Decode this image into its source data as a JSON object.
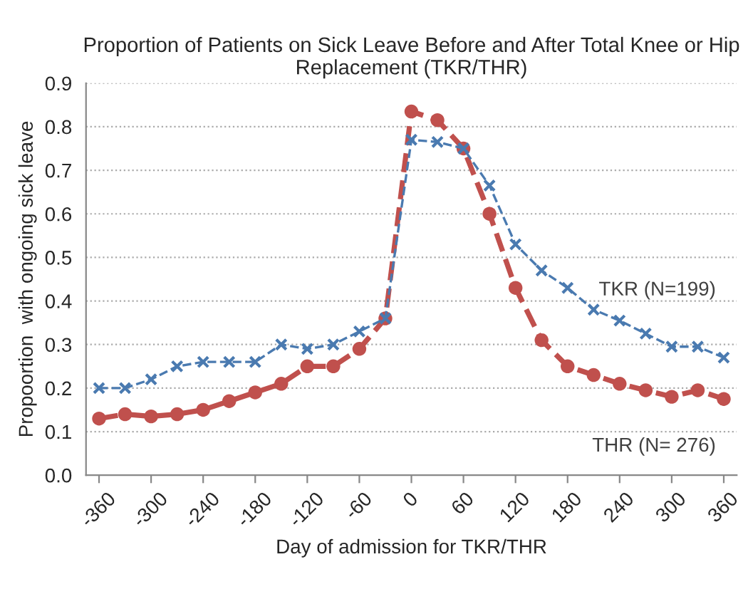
{
  "chart_data": {
    "type": "line",
    "title": "Proportion of Patients on Sick Leave Before and After Total Knee or Hip Replacement (TKR/THR)",
    "xlabel": "Day of admission for TKR/THR",
    "ylabel": "Propoortion  with ongoing sick leave",
    "x": [
      -360,
      -330,
      -300,
      -270,
      -240,
      -210,
      -180,
      -150,
      -120,
      -90,
      -60,
      -30,
      0,
      30,
      60,
      90,
      120,
      150,
      180,
      210,
      240,
      270,
      300,
      330,
      360
    ],
    "series": [
      {
        "name": "TKR (N=199)",
        "color": "#4a7ab0",
        "marker": "cross",
        "line_style": "dashed",
        "values": [
          0.2,
          0.2,
          0.22,
          0.25,
          0.26,
          0.26,
          0.26,
          0.3,
          0.29,
          0.3,
          0.33,
          0.36,
          0.77,
          0.765,
          0.75,
          0.665,
          0.53,
          0.47,
          0.43,
          0.38,
          0.355,
          0.325,
          0.295,
          0.295,
          0.27
        ]
      },
      {
        "name": "THR (N= 276)",
        "color": "#c0504d",
        "marker": "circle",
        "line_style": "dashed",
        "values": [
          0.13,
          0.14,
          0.135,
          0.14,
          0.15,
          0.17,
          0.19,
          0.21,
          0.25,
          0.25,
          0.29,
          0.36,
          0.835,
          0.815,
          0.75,
          0.6,
          0.43,
          0.31,
          0.25,
          0.23,
          0.21,
          0.195,
          0.18,
          0.195,
          0.175
        ]
      }
    ],
    "xlim": [
      -375,
      375
    ],
    "xticks": [
      -360,
      -300,
      -240,
      -180,
      -120,
      -60,
      0,
      60,
      120,
      180,
      240,
      300,
      360
    ],
    "ylim": [
      0,
      0.9
    ],
    "yticks": [
      {
        "value": 0,
        "label": "0.0"
      },
      0.1,
      0.2,
      0.3,
      0.4,
      0.5,
      0.6,
      0.7,
      0.8,
      0.9
    ],
    "grid": "y",
    "legend": false
  }
}
